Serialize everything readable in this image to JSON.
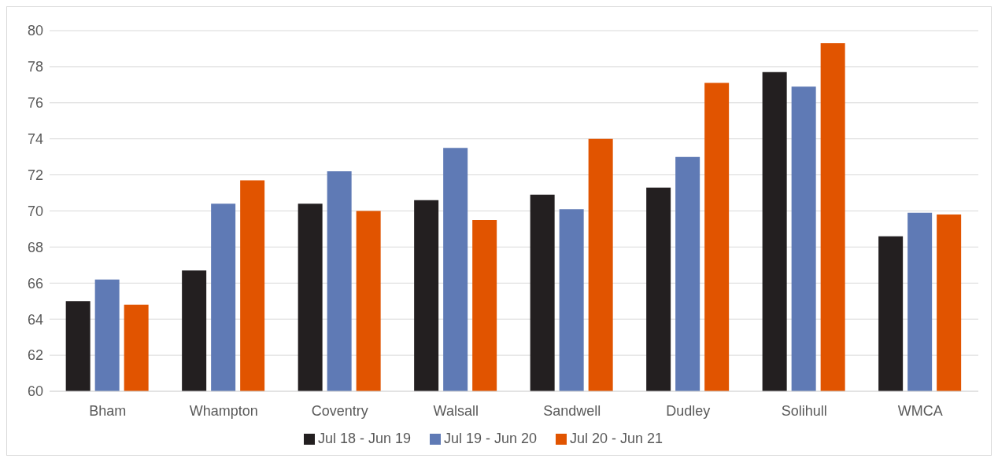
{
  "chart_data": {
    "type": "bar",
    "categories": [
      "Bham",
      "Whampton",
      "Coventry",
      "Walsall",
      "Sandwell",
      "Dudley",
      "Solihull",
      "WMCA"
    ],
    "series": [
      {
        "name": "Jul 18 - Jun 19",
        "color": "#231f20",
        "values": [
          65.0,
          66.7,
          70.4,
          70.6,
          70.9,
          71.3,
          77.7,
          68.6
        ]
      },
      {
        "name": "Jul 19 - Jun 20",
        "color": "#5f7ab5",
        "values": [
          66.2,
          70.4,
          72.2,
          73.5,
          70.1,
          73.0,
          76.9,
          69.9
        ]
      },
      {
        "name": "Jul 20 - Jun 21",
        "color": "#e15400",
        "values": [
          64.8,
          71.7,
          70.0,
          69.5,
          74.0,
          77.1,
          79.3,
          69.8
        ]
      }
    ],
    "ylim": [
      60,
      80
    ],
    "yticks": [
      60,
      62,
      64,
      66,
      68,
      70,
      72,
      74,
      76,
      78,
      80
    ],
    "grid": "y",
    "legend": "bottom"
  }
}
